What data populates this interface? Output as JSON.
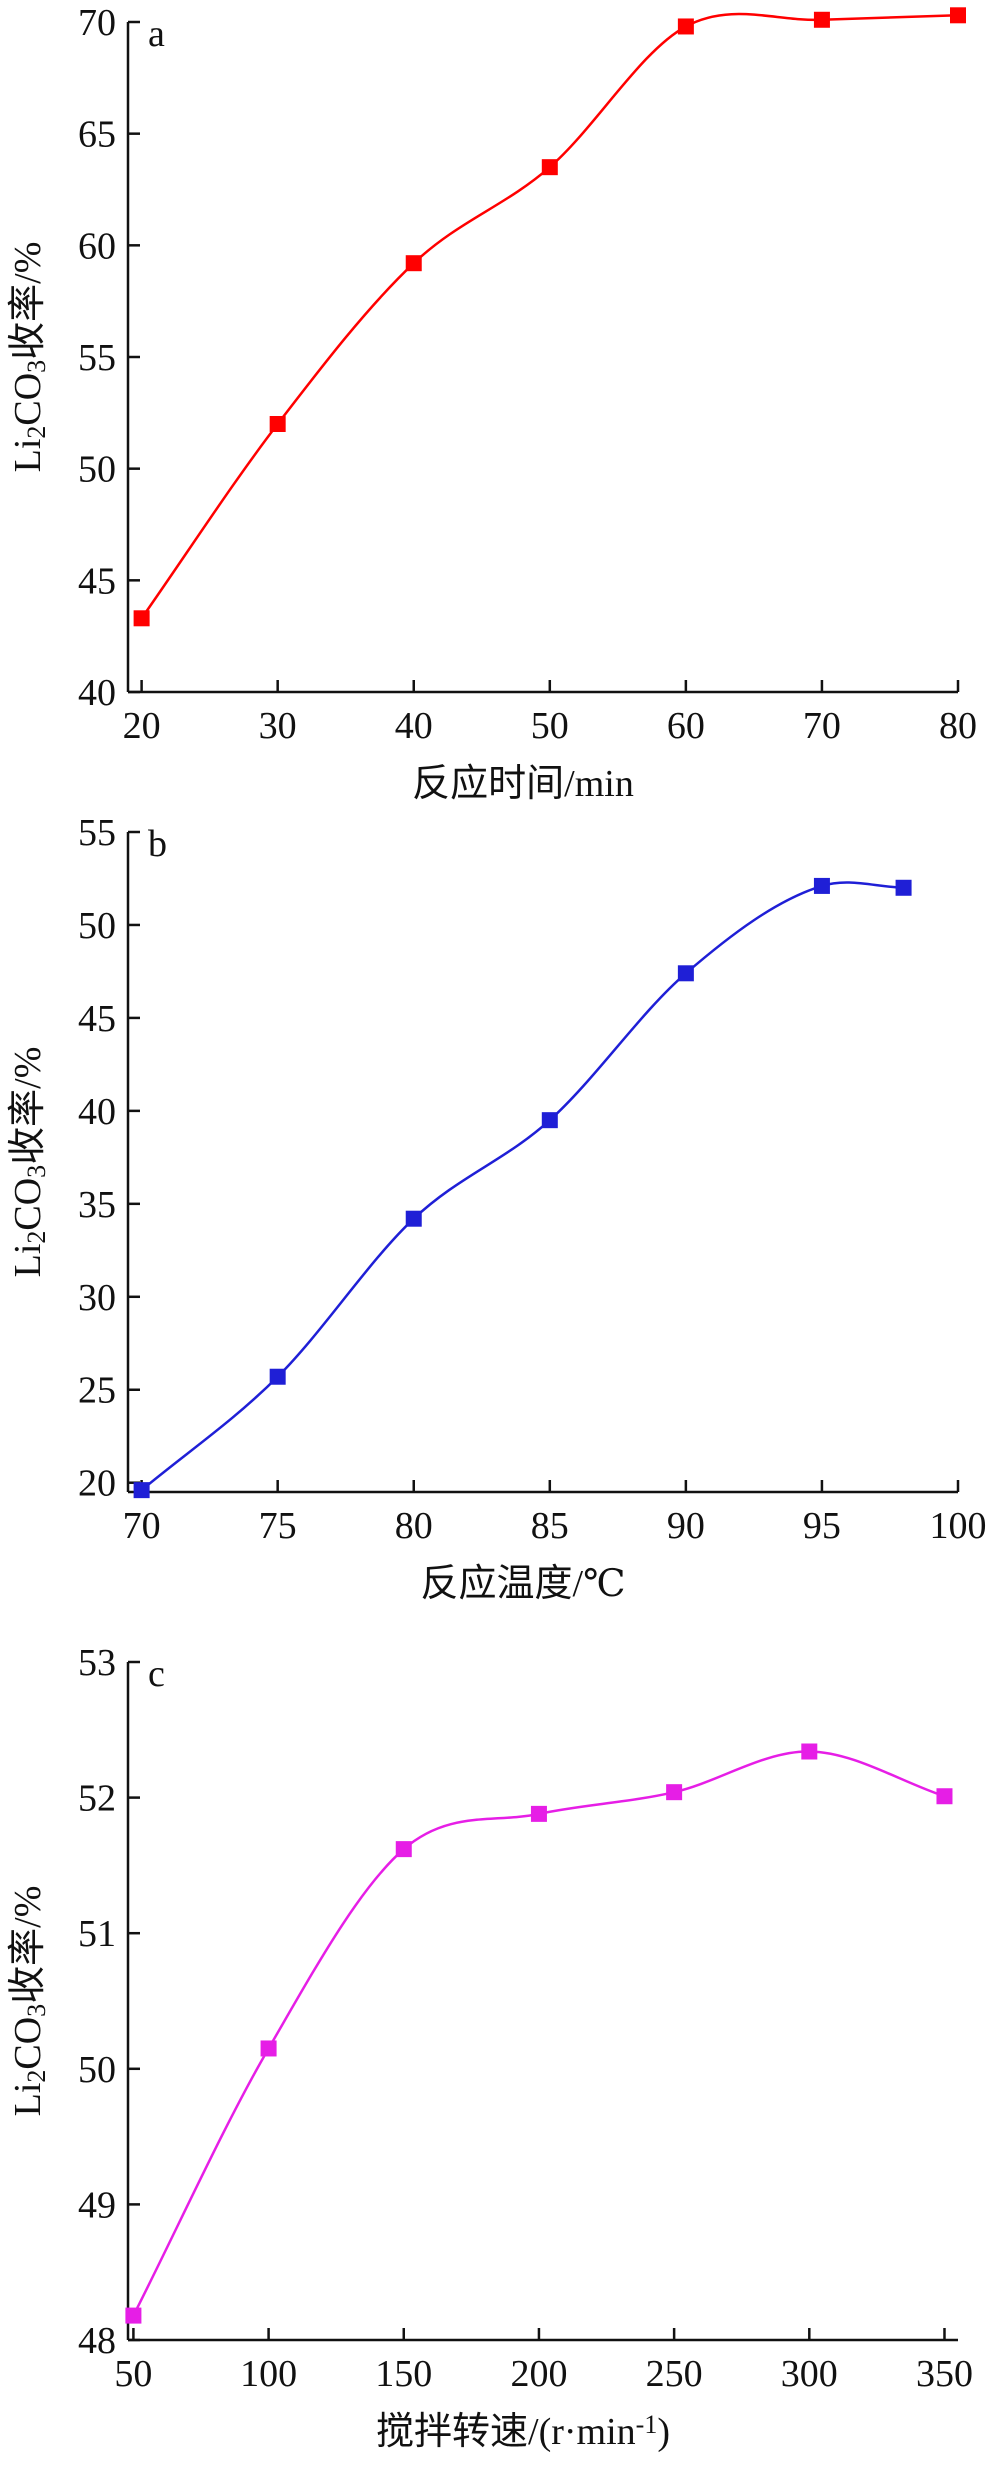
{
  "chart_data": [
    {
      "type": "line",
      "panel_label": "a",
      "xlabel": "反应时间/min",
      "ylabel_parts": [
        "Li",
        "2",
        "CO",
        "3",
        "收率/%"
      ],
      "x": [
        20,
        30,
        40,
        50,
        60,
        70,
        80
      ],
      "series": [
        {
          "values": [
            43.3,
            52.0,
            59.2,
            63.5,
            69.8,
            70.1,
            70.3
          ],
          "color": "#ff0000"
        }
      ],
      "xlim": [
        19,
        80
      ],
      "ylim": [
        40,
        70
      ],
      "xticks": [
        20,
        30,
        40,
        50,
        60,
        70,
        80
      ],
      "yticks": [
        40,
        45,
        50,
        55,
        60,
        65,
        70
      ],
      "marker": "square",
      "grid": false
    },
    {
      "type": "line",
      "panel_label": "b",
      "xlabel": "反应温度/℃",
      "ylabel_parts": [
        "Li",
        "2",
        "CO",
        "3",
        "收率/%"
      ],
      "x": [
        70,
        75,
        80,
        85,
        90,
        95,
        98
      ],
      "series": [
        {
          "values": [
            19.6,
            25.7,
            34.2,
            39.5,
            47.4,
            52.1,
            52.0
          ],
          "color": "#1f1fd6"
        }
      ],
      "xlim": [
        69.5,
        100
      ],
      "ylim": [
        19.5,
        55
      ],
      "xticks": [
        70,
        75,
        80,
        85,
        90,
        95,
        100
      ],
      "yticks": [
        20,
        25,
        30,
        35,
        40,
        45,
        50,
        55
      ],
      "marker": "square",
      "grid": false
    },
    {
      "type": "line",
      "panel_label": "c",
      "xlabel_parts": [
        "搅拌转速/(r·min",
        "-1",
        ")"
      ],
      "ylabel_parts": [
        "Li",
        "2",
        "CO",
        "3",
        "收率/%"
      ],
      "x": [
        50,
        100,
        150,
        200,
        250,
        300,
        350
      ],
      "series": [
        {
          "values": [
            48.18,
            50.15,
            51.62,
            51.88,
            52.04,
            52.34,
            52.01
          ],
          "color": "#e61ee6"
        }
      ],
      "xlim": [
        48,
        355
      ],
      "ylim": [
        48,
        53
      ],
      "xticks": [
        50,
        100,
        150,
        200,
        250,
        300,
        350
      ],
      "yticks": [
        48,
        49,
        50,
        51,
        52,
        53
      ],
      "marker": "square",
      "grid": false
    }
  ]
}
